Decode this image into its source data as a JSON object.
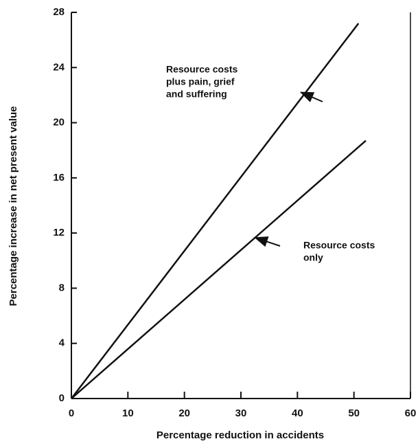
{
  "chart_data": {
    "type": "line",
    "xlabel": "Percentage reduction in accidents",
    "ylabel": "Percentage increase in net present value",
    "xlim": [
      0,
      60
    ],
    "xticks": [
      0,
      10,
      20,
      30,
      40,
      50,
      60
    ],
    "ylim": [
      0,
      28
    ],
    "yticks": [
      0,
      4,
      8,
      12,
      16,
      20,
      24,
      28
    ],
    "series": [
      {
        "annotation_lines": [
          "Resource costs",
          "plus pain, grief",
          "and suffering"
        ],
        "color": "#111111",
        "x": [
          0,
          50.8
        ],
        "values": [
          0,
          27.2
        ]
      },
      {
        "annotation_lines": [
          "Resource costs",
          "only"
        ],
        "color": "#111111",
        "x": [
          0,
          52.1
        ],
        "values": [
          0,
          18.7
        ]
      }
    ]
  }
}
